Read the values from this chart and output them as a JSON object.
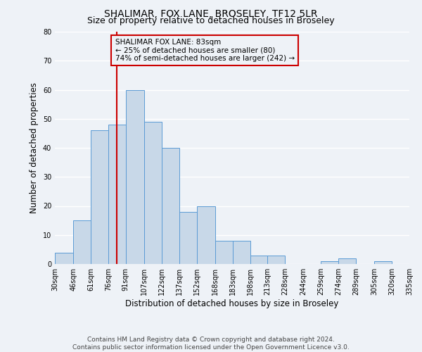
{
  "title": "SHALIMAR, FOX LANE, BROSELEY, TF12 5LR",
  "subtitle": "Size of property relative to detached houses in Broseley",
  "xlabel": "Distribution of detached houses by size in Broseley",
  "ylabel": "Number of detached properties",
  "bin_edges": [
    30,
    46,
    61,
    76,
    91,
    107,
    122,
    137,
    152,
    168,
    183,
    198,
    213,
    228,
    244,
    259,
    274,
    289,
    305,
    320,
    335
  ],
  "bar_heights": [
    4,
    15,
    46,
    48,
    60,
    49,
    40,
    18,
    20,
    8,
    8,
    3,
    3,
    0,
    0,
    1,
    2,
    0,
    1,
    0
  ],
  "bar_color": "#c8d8e8",
  "bar_edge_color": "#5b9bd5",
  "vline_x": 83,
  "vline_color": "#cc0000",
  "annotation_text": "SHALIMAR FOX LANE: 83sqm\n← 25% of detached houses are smaller (80)\n74% of semi-detached houses are larger (242) →",
  "annotation_box_color": "#cc0000",
  "ylim": [
    0,
    80
  ],
  "yticks": [
    0,
    10,
    20,
    30,
    40,
    50,
    60,
    70,
    80
  ],
  "tick_labels": [
    "30sqm",
    "46sqm",
    "61sqm",
    "76sqm",
    "91sqm",
    "107sqm",
    "122sqm",
    "137sqm",
    "152sqm",
    "168sqm",
    "183sqm",
    "198sqm",
    "213sqm",
    "228sqm",
    "244sqm",
    "259sqm",
    "274sqm",
    "289sqm",
    "305sqm",
    "320sqm",
    "335sqm"
  ],
  "footer_text": "Contains HM Land Registry data © Crown copyright and database right 2024.\nContains public sector information licensed under the Open Government Licence v3.0.",
  "background_color": "#eef2f7",
  "grid_color": "#ffffff",
  "title_fontsize": 10,
  "subtitle_fontsize": 9,
  "label_fontsize": 8.5,
  "tick_fontsize": 7,
  "footer_fontsize": 6.5,
  "annotation_fontsize": 7.5
}
